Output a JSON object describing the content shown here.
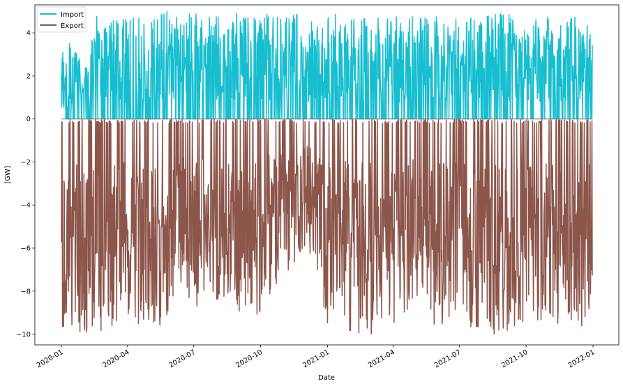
{
  "chart_data": {
    "type": "line",
    "title": "",
    "xlabel": "Date",
    "ylabel": "[GW]",
    "x_range": [
      "2020-01-01",
      "2021-12-31"
    ],
    "ylim": [
      -10.5,
      5.3
    ],
    "grid": false,
    "legend_position": "top-left",
    "x_ticks": [
      {
        "date": "2020-01-01",
        "label": "2020-01"
      },
      {
        "date": "2020-04-01",
        "label": "2020-04"
      },
      {
        "date": "2020-07-01",
        "label": "2020-07"
      },
      {
        "date": "2020-10-01",
        "label": "2020-10"
      },
      {
        "date": "2021-01-01",
        "label": "2021-01"
      },
      {
        "date": "2021-04-01",
        "label": "2021-04"
      },
      {
        "date": "2021-07-01",
        "label": "2021-07"
      },
      {
        "date": "2021-10-01",
        "label": "2021-10"
      },
      {
        "date": "2022-01-01",
        "label": "2022-01"
      }
    ],
    "y_ticks": [
      {
        "value": 4,
        "label": "4"
      },
      {
        "value": 2,
        "label": "2"
      },
      {
        "value": 0,
        "label": "0"
      },
      {
        "value": -2,
        "label": "−2"
      },
      {
        "value": -4,
        "label": "−4"
      },
      {
        "value": -6,
        "label": "−6"
      },
      {
        "value": -8,
        "label": "−8"
      },
      {
        "value": -10,
        "label": "−10"
      }
    ],
    "sampling": "daily (approximated; dense hourly series)",
    "series": [
      {
        "name": "Import",
        "color": "#17becf",
        "x": [
          "2020-01-01",
          "2020-01-15",
          "2020-02-01",
          "2020-02-15",
          "2020-03-01",
          "2020-03-15",
          "2020-04-01",
          "2020-04-15",
          "2020-05-01",
          "2020-05-15",
          "2020-06-01",
          "2020-06-15",
          "2020-07-01",
          "2020-07-15",
          "2020-08-01",
          "2020-08-15",
          "2020-09-01",
          "2020-09-15",
          "2020-10-01",
          "2020-10-15",
          "2020-11-01",
          "2020-11-15",
          "2020-12-01",
          "2020-12-15",
          "2021-01-01",
          "2021-01-15",
          "2021-02-01",
          "2021-02-15",
          "2021-03-01",
          "2021-03-15",
          "2021-04-01",
          "2021-04-15",
          "2021-05-01",
          "2021-05-15",
          "2021-06-01",
          "2021-06-15",
          "2021-07-01",
          "2021-07-15",
          "2021-08-01",
          "2021-08-15",
          "2021-09-01",
          "2021-09-15",
          "2021-10-01",
          "2021-10-15",
          "2021-11-01",
          "2021-11-15",
          "2021-12-01",
          "2021-12-15",
          "2021-12-31"
        ],
        "values": [
          3.1,
          3.7,
          2.3,
          4.8,
          4.9,
          4.7,
          4.8,
          4.8,
          4.7,
          5.0,
          5.0,
          4.9,
          4.9,
          4.8,
          4.9,
          5.0,
          5.0,
          5.0,
          5.0,
          4.8,
          4.7,
          4.9,
          4.8,
          4.7,
          4.8,
          4.9,
          4.9,
          4.8,
          4.9,
          4.8,
          4.9,
          4.8,
          4.9,
          4.8,
          4.8,
          4.9,
          4.9,
          4.7,
          4.7,
          4.9,
          4.9,
          4.8,
          4.8,
          4.7,
          4.8,
          4.7,
          4.9,
          4.8,
          5.0
        ]
      },
      {
        "name": "Export",
        "color": "#8c564b",
        "x": [
          "2020-01-01",
          "2020-01-15",
          "2020-02-01",
          "2020-02-15",
          "2020-03-01",
          "2020-03-15",
          "2020-04-01",
          "2020-04-15",
          "2020-05-01",
          "2020-05-15",
          "2020-06-01",
          "2020-06-15",
          "2020-07-01",
          "2020-07-15",
          "2020-08-01",
          "2020-08-15",
          "2020-09-01",
          "2020-09-15",
          "2020-10-01",
          "2020-10-15",
          "2020-11-01",
          "2020-11-15",
          "2020-12-01",
          "2020-12-15",
          "2021-01-01",
          "2021-01-15",
          "2021-02-01",
          "2021-02-15",
          "2021-03-01",
          "2021-03-15",
          "2021-04-01",
          "2021-04-15",
          "2021-05-01",
          "2021-05-15",
          "2021-06-01",
          "2021-06-15",
          "2021-07-01",
          "2021-07-15",
          "2021-08-01",
          "2021-08-15",
          "2021-09-01",
          "2021-09-15",
          "2021-10-01",
          "2021-10-15",
          "2021-11-01",
          "2021-11-15",
          "2021-12-01",
          "2021-12-15",
          "2021-12-31"
        ],
        "values": [
          -9.6,
          -10.0,
          -9.9,
          -10.0,
          -10.0,
          -9.5,
          -9.8,
          -9.6,
          -9.5,
          -10.0,
          -8.5,
          -8.0,
          -9.6,
          -8.0,
          -8.6,
          -8.3,
          -9.1,
          -8.5,
          -9.4,
          -8.1,
          -7.3,
          -6.9,
          -6.2,
          -6.6,
          -9.8,
          -8.3,
          -9.9,
          -10.0,
          -10.0,
          -10.0,
          -9.9,
          -9.5,
          -9.2,
          -8.7,
          -10.0,
          -9.4,
          -9.0,
          -10.0,
          -9.7,
          -10.0,
          -10.0,
          -9.7,
          -9.7,
          -10.0,
          -9.6,
          -9.5,
          -10.0,
          -10.0,
          -8.7
        ]
      }
    ]
  }
}
